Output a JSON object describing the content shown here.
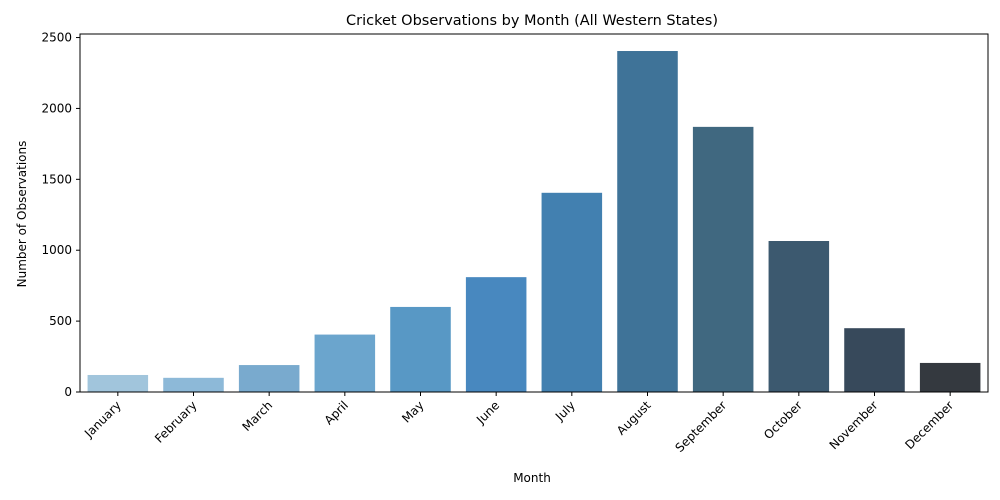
{
  "chart_data": {
    "type": "bar",
    "title": "Cricket Observations by Month (All Western States)",
    "xlabel": "Month",
    "ylabel": "Number of Observations",
    "categories": [
      "January",
      "February",
      "March",
      "April",
      "May",
      "June",
      "July",
      "August",
      "September",
      "October",
      "November",
      "December"
    ],
    "values": [
      120,
      100,
      190,
      405,
      600,
      810,
      1405,
      2405,
      1870,
      1065,
      450,
      205
    ],
    "ylim": [
      0,
      2525
    ],
    "yticks": [
      0,
      500,
      1000,
      1500,
      2000,
      2500
    ],
    "colors": [
      "#a1c5dc",
      "#8db9d8",
      "#79aace",
      "#6ba5cd",
      "#5898c5",
      "#4888bf",
      "#4280b0",
      "#3f7398",
      "#406880",
      "#3c596f",
      "#37495b",
      "#34393f"
    ],
    "grid": false,
    "legend": "none",
    "xtick_rotation": 45
  }
}
